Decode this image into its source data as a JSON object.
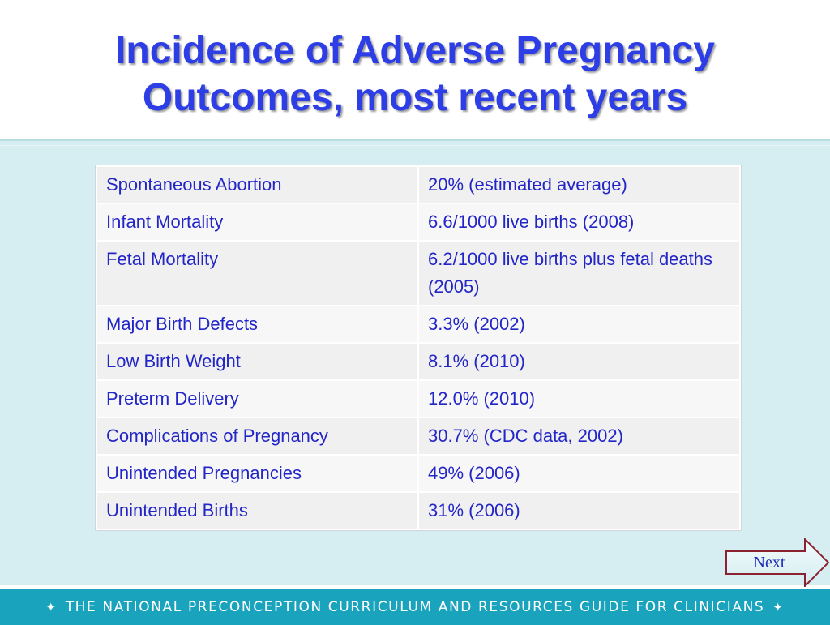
{
  "slide": {
    "title_line1": "Incidence of Adverse Pregnancy",
    "title_line2": "Outcomes, most recent years"
  },
  "table": {
    "rows": [
      {
        "label": "Spontaneous Abortion",
        "value": "20% (estimated average)"
      },
      {
        "label": "Infant Mortality",
        "value": "6.6/1000 live births (2008)"
      },
      {
        "label": "Fetal Mortality",
        "value": "6.2/1000 live births plus fetal deaths (2005)"
      },
      {
        "label": "Major Birth Defects",
        "value": "3.3% (2002)"
      },
      {
        "label": "Low Birth Weight",
        "value": "8.1% (2010)"
      },
      {
        "label": "Preterm Delivery",
        "value": "12.0% (2010)"
      },
      {
        "label": "Complications of Pregnancy",
        "value": "30.7% (CDC data, 2002)"
      },
      {
        "label": "Unintended Pregnancies",
        "value": "49% (2006)"
      },
      {
        "label": "Unintended Births",
        "value": "31% (2006)"
      }
    ]
  },
  "nav": {
    "next_label": "Next"
  },
  "footer": {
    "left_ornament": "✦",
    "text": "THE NATIONAL PRECONCEPTION CURRICULUM AND RESOURCES GUIDE FOR CLINICIANS",
    "right_ornament": "✦"
  },
  "colors": {
    "title": "#2e3ee6",
    "table_text": "#2326c7",
    "band": "#d6eef1",
    "footer": "#1aa3bd"
  }
}
